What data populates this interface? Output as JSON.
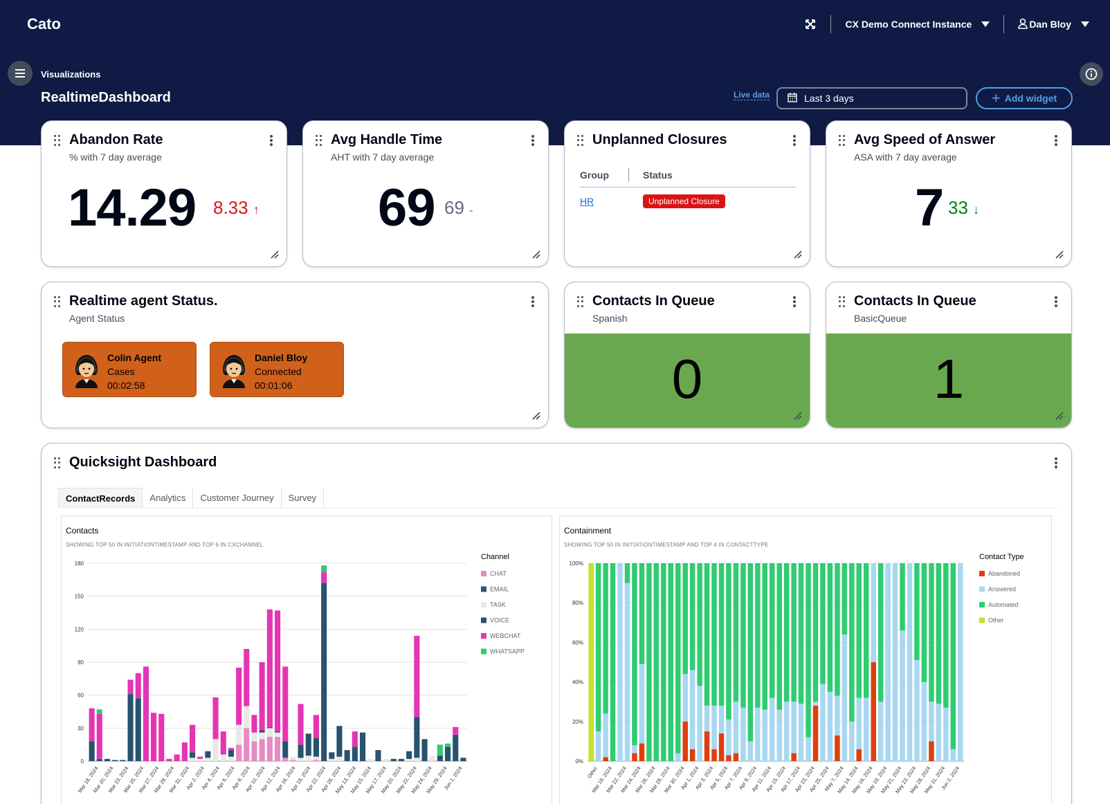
{
  "nav": {
    "brand": "Cato",
    "instance": "CX Demo Connect Instance",
    "user": "Dan Bloy"
  },
  "header": {
    "breadcrumb": "Visualizations",
    "title": "RealtimeDashboard",
    "live_data": "Live data",
    "date_range": "Last 3 days",
    "add_widget": "Add widget"
  },
  "widgets": {
    "abandon": {
      "title": "Abandon Rate",
      "subtitle": "% with 7 day average",
      "value": "14.29",
      "delta": "8.33",
      "arrow": "↑"
    },
    "aht": {
      "title": "Avg Handle Time",
      "subtitle": "AHT with 7 day average",
      "value": "69",
      "delta": "69",
      "arrow": "-"
    },
    "closures": {
      "title": "Unplanned Closures",
      "col_group": "Group",
      "col_status": "Status",
      "group": "HR",
      "status": "Unplanned Closure"
    },
    "asa": {
      "title": "Avg Speed of Answer",
      "subtitle": "ASA with 7 day average",
      "value": "7",
      "delta": "33",
      "arrow": "↓"
    },
    "agents": {
      "title": "Realtime agent Status.",
      "subtitle": "Agent Status",
      "items": [
        {
          "name": "Colin Agent",
          "state": "Cases",
          "time": "00:02:58"
        },
        {
          "name": "Daniel Bloy",
          "state": "Connected",
          "time": "00:01:06"
        }
      ]
    },
    "queue_spanish": {
      "title": "Contacts In Queue",
      "subtitle": "Spanish",
      "value": "0"
    },
    "queue_basic": {
      "title": "Contacts In Queue",
      "subtitle": "BasicQueue",
      "value": "1"
    },
    "quicksight": {
      "title": "Quicksight Dashboard",
      "tabs": [
        "ContactRecords",
        "Analytics",
        "Customer Journey",
        "Survey"
      ],
      "contacts_title": "Contacts",
      "contacts_sub": "SHOWING TOP 50 IN INITIATIONTIMESTAMP AND TOP 6 IN CXCHANNEL",
      "containment_title": "Containment",
      "containment_sub": "SHOWING TOP 50 IN INITIATIONTIMESTAMP AND TOP 4 IN CONTACTTYPE"
    }
  },
  "colors": {
    "nav_bg": "#0f1b45",
    "accent": "#539fe5",
    "agent_tile": "#d1611a",
    "queue_fill": "#6aa84f",
    "delta_up": "#d91515",
    "delta_down": "#037f0c"
  },
  "chart_data": [
    {
      "type": "bar",
      "stacked": true,
      "title": "Contacts",
      "legend_title": "Channel",
      "legend_position": "right",
      "ylim": [
        0,
        180
      ],
      "yticks": [
        0,
        30,
        60,
        90,
        120,
        150,
        180
      ],
      "grid": true,
      "colors": {
        "CHAT": "#e78ac3",
        "EMAIL": "#2e5a7a",
        "TASK": "#e8e8e8",
        "VOICE": "#27536f",
        "WEBCHAT": "#e535b4",
        "WHATSAPP": "#2ecc71"
      },
      "series_names": [
        "CHAT",
        "EMAIL",
        "TASK",
        "VOICE",
        "WEBCHAT",
        "WHATSAPP"
      ],
      "x_labels": [
        "Mar 18, 2024",
        "Mar 20, 2024",
        "Mar 23, 2024",
        "Mar 25, 2024",
        "Mar 27, 2024",
        "Mar 29, 2024",
        "Mar 31, 2024",
        "Apr 2, 2024",
        "Apr 4, 2024",
        "Apr 6, 2024",
        "Apr 8, 2024",
        "Apr 10, 2024",
        "Apr 12, 2024",
        "Apr 16, 2024",
        "Apr 19, 2024",
        "Apr 22, 2024",
        "Apr 26, 2024",
        "May 13, 2024",
        "May 15, 2024",
        "May 17, 2024",
        "May 20, 2024",
        "May 22, 2024",
        "May 24, 2024",
        "May 29, 2024",
        "Jun 1, 2024"
      ],
      "bars": [
        {
          "VOICE": 18,
          "WEBCHAT": 30
        },
        {
          "VOICE": 2,
          "WEBCHAT": 41,
          "WHATSAPP": 4
        },
        {
          "VOICE": 2
        },
        {
          "VOICE": 1
        },
        {
          "VOICE": 1
        },
        {
          "VOICE": 61,
          "WEBCHAT": 13
        },
        {
          "VOICE": 57,
          "WEBCHAT": 23
        },
        {
          "WEBCHAT": 86
        },
        {
          "WEBCHAT": 44
        },
        {
          "WEBCHAT": 43
        },
        {
          "WEBCHAT": 2
        },
        {
          "WEBCHAT": 6
        },
        {
          "WEBCHAT": 17
        },
        {
          "TASK": 3,
          "VOICE": 5,
          "WEBCHAT": 25
        },
        {
          "TASK": 2,
          "WEBCHAT": 2
        },
        {
          "TASK": 3,
          "VOICE": 6
        },
        {
          "TASK": 20,
          "WEBCHAT": 38
        },
        {
          "TASK": 6,
          "WEBCHAT": 21
        },
        {
          "TASK": 4,
          "VOICE": 6,
          "WEBCHAT": 2
        },
        {
          "CHAT": 15,
          "TASK": 18,
          "WEBCHAT": 52
        },
        {
          "CHAT": 30,
          "TASK": 20,
          "WEBCHAT": 52
        },
        {
          "CHAT": 18,
          "TASK": 8,
          "WEBCHAT": 16
        },
        {
          "CHAT": 20,
          "TASK": 6,
          "VOICE": 2,
          "WEBCHAT": 62
        },
        {
          "CHAT": 22,
          "TASK": 8,
          "VOICE": 1,
          "WEBCHAT": 107
        },
        {
          "CHAT": 22,
          "TASK": 4,
          "VOICE": 1,
          "WEBCHAT": 110
        },
        {
          "CHAT": 3,
          "VOICE": 15,
          "WEBCHAT": 68
        },
        {
          "CHAT": 1,
          "TASK": 3
        },
        {
          "TASK": 3,
          "VOICE": 12,
          "WEBCHAT": 37
        },
        {
          "TASK": 5,
          "VOICE": 20
        },
        {
          "CHAT": 1,
          "TASK": 3,
          "VOICE": 17,
          "WEBCHAT": 21
        },
        {
          "VOICE": 162,
          "WEBCHAT": 10,
          "WHATSAPP": 6
        },
        {
          "TASK": 2,
          "VOICE": 6
        },
        {
          "TASK": 4,
          "VOICE": 28
        },
        {
          "VOICE": 10
        },
        {
          "VOICE": 13,
          "WEBCHAT": 14
        },
        {
          "VOICE": 26
        },
        {
          "TASK": 2
        },
        {
          "VOICE": 10
        },
        {
          "TASK": 2
        },
        {
          "VOICE": 2
        },
        {
          "VOICE": 2
        },
        {
          "TASK": 2,
          "VOICE": 7
        },
        {
          "TASK": 3,
          "VOICE": 37,
          "WEBCHAT": 74
        },
        {
          "VOICE": 20
        },
        {
          "TASK": 5
        },
        {
          "VOICE": 5,
          "WHATSAPP": 10
        },
        {
          "VOICE": 13,
          "WHATSAPP": 3
        },
        {
          "VOICE": 24,
          "WEBCHAT": 7
        },
        {
          "VOICE": 3
        }
      ]
    },
    {
      "type": "bar",
      "stacked": true,
      "normalized": true,
      "title": "Containment",
      "legend_title": "Contact Type",
      "legend_position": "right",
      "ylim": [
        0,
        100
      ],
      "yticks": [
        "0%",
        "20%",
        "40%",
        "60%",
        "80%",
        "100%"
      ],
      "grid": true,
      "colors": {
        "Abandoned": "#e03e0f",
        "Answered": "#a8d8f0",
        "Automated": "#2fcc71",
        "Other": "#c2e22b"
      },
      "series_names": [
        "Abandoned",
        "Answered",
        "Automated",
        "Other"
      ],
      "x_labels": [
        "Other",
        "Mar 19, 2024",
        "Mar 22, 2024",
        "Mar 24, 2024",
        "Mar 26, 2024",
        "Mar 28, 2024",
        "Mar 30, 2024",
        "Apr 1, 2024",
        "Apr 3, 2024",
        "Apr 5, 2024",
        "Apr 7, 2024",
        "Apr 9, 2024",
        "Apr 11, 2024",
        "Apr 15, 2024",
        "Apr 17, 2024",
        "Apr 23, 2024",
        "Apr 25, 2024",
        "May 7, 2024",
        "May 14, 2024",
        "May 16, 2024",
        "May 19, 2024",
        "May 21, 2024",
        "May 23, 2024",
        "May 28, 2024",
        "May 31, 2024",
        "Jun 2, 2024"
      ],
      "bars": [
        {
          "Other": 100
        },
        {
          "Answered": 15,
          "Automated": 85
        },
        {
          "Abandoned": 2,
          "Answered": 22,
          "Automated": 76
        },
        {
          "Automated": 100
        },
        {
          "Answered": 100
        },
        {
          "Answered": 90,
          "Automated": 10
        },
        {
          "Abandoned": 4,
          "Answered": 4,
          "Automated": 92
        },
        {
          "Abandoned": 9,
          "Answered": 40,
          "Automated": 51
        },
        {
          "Automated": 100
        },
        {
          "Automated": 100
        },
        {
          "Automated": 100
        },
        {
          "Automated": 100
        },
        {
          "Answered": 4,
          "Automated": 96
        },
        {
          "Abandoned": 20,
          "Answered": 24,
          "Automated": 56
        },
        {
          "Abandoned": 6,
          "Answered": 40,
          "Automated": 54
        },
        {
          "Answered": 38,
          "Automated": 62
        },
        {
          "Abandoned": 15,
          "Answered": 13,
          "Automated": 72
        },
        {
          "Abandoned": 6,
          "Answered": 22,
          "Automated": 72
        },
        {
          "Abandoned": 14,
          "Answered": 14,
          "Automated": 72
        },
        {
          "Abandoned": 3,
          "Answered": 18,
          "Automated": 79
        },
        {
          "Abandoned": 4,
          "Answered": 26,
          "Automated": 70
        },
        {
          "Answered": 27,
          "Automated": 73
        },
        {
          "Answered": 10,
          "Automated": 90
        },
        {
          "Answered": 27,
          "Automated": 73
        },
        {
          "Answered": 26,
          "Automated": 74
        },
        {
          "Answered": 32,
          "Automated": 68
        },
        {
          "Answered": 26,
          "Automated": 74
        },
        {
          "Answered": 30,
          "Automated": 70
        },
        {
          "Abandoned": 4,
          "Answered": 26,
          "Automated": 70
        },
        {
          "Answered": 29,
          "Automated": 71
        },
        {
          "Answered": 12,
          "Automated": 88
        },
        {
          "Abandoned": 28,
          "Answered": 2,
          "Automated": 70
        },
        {
          "Answered": 39,
          "Automated": 61
        },
        {
          "Answered": 35,
          "Automated": 65
        },
        {
          "Abandoned": 13,
          "Answered": 20,
          "Automated": 67
        },
        {
          "Answered": 64,
          "Automated": 36
        },
        {
          "Answered": 20,
          "Automated": 80
        },
        {
          "Abandoned": 6,
          "Answered": 26,
          "Automated": 68
        },
        {
          "Answered": 32,
          "Automated": 68
        },
        {
          "Abandoned": 50,
          "Answered": 50
        },
        {
          "Answered": 30,
          "Automated": 70
        },
        {
          "Answered": 100
        },
        {
          "Answered": 100
        },
        {
          "Answered": 66,
          "Automated": 34
        },
        {
          "Answered": 100
        },
        {
          "Answered": 51,
          "Automated": 49
        },
        {
          "Answered": 40,
          "Automated": 60
        },
        {
          "Abandoned": 10,
          "Answered": 20,
          "Automated": 70
        },
        {
          "Answered": 29,
          "Automated": 71
        },
        {
          "Answered": 27,
          "Automated": 73
        },
        {
          "Answered": 6,
          "Automated": 94
        },
        {
          "Answered": 100
        }
      ]
    }
  ]
}
